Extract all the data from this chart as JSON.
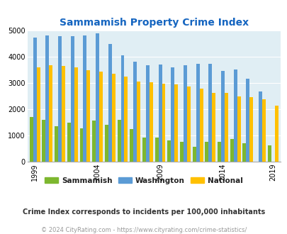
{
  "title": "Sammamish Property Crime Index",
  "years": [
    1999,
    2000,
    2001,
    2002,
    2003,
    2004,
    2005,
    2006,
    2007,
    2008,
    2009,
    2010,
    2011,
    2012,
    2013,
    2014,
    2015,
    2016,
    2017,
    2019
  ],
  "sammamish": [
    1700,
    1600,
    1350,
    1480,
    1270,
    1550,
    1400,
    1600,
    1230,
    900,
    900,
    800,
    750,
    560,
    760,
    760,
    870,
    690,
    0,
    620
  ],
  "washington": [
    4730,
    4810,
    4790,
    4790,
    4820,
    4890,
    4490,
    4040,
    3800,
    3670,
    3700,
    3600,
    3680,
    3720,
    3720,
    3460,
    3520,
    3170,
    2660,
    0
  ],
  "national": [
    3600,
    3660,
    3640,
    3590,
    3470,
    3430,
    3340,
    3250,
    3060,
    3010,
    2960,
    2940,
    2850,
    2780,
    2620,
    2610,
    2490,
    2460,
    2380,
    2130
  ],
  "ylim": [
    0,
    5000
  ],
  "yticks": [
    0,
    1000,
    2000,
    3000,
    4000,
    5000
  ],
  "xlabel_tick_indices": [
    0,
    5,
    10,
    15,
    19
  ],
  "xlabel_labels": [
    "1999",
    "2004",
    "2009",
    "2014",
    "2019"
  ],
  "sammamish_color": "#7db72f",
  "washington_color": "#5b9bd5",
  "national_color": "#ffc000",
  "bg_color": "#e0eef4",
  "title_color": "#1565c0",
  "legend_labels": [
    "Sammamish",
    "Washington",
    "National"
  ],
  "note": "Crime Index corresponds to incidents per 100,000 inhabitants",
  "footer": "© 2024 CityRating.com - https://www.cityrating.com/crime-statistics/"
}
